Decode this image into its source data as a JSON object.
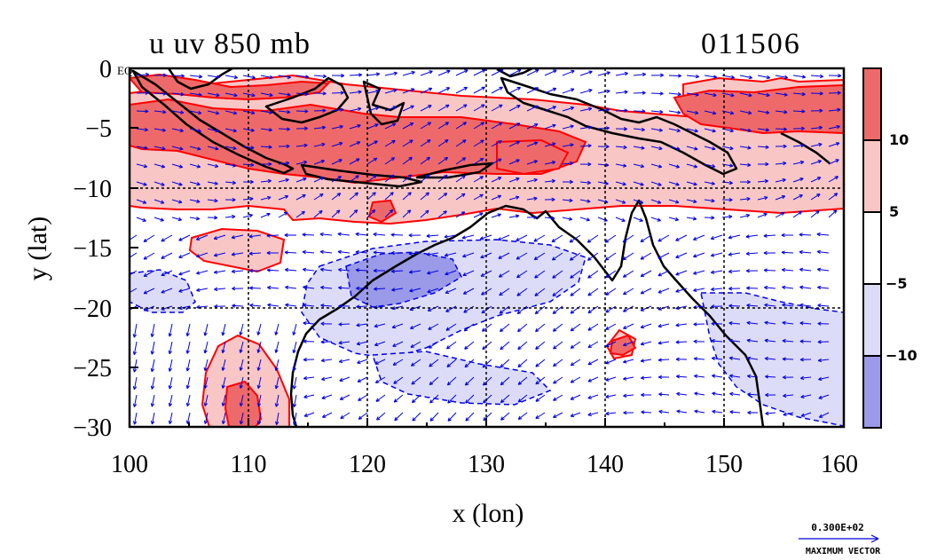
{
  "plot": {
    "title": "u uv 850 mb",
    "timestamp": "011506",
    "xlabel": "x (lon)",
    "ylabel": "y (lat)",
    "x_ticks": [
      "100",
      "110",
      "120",
      "130",
      "140",
      "150",
      "160"
    ],
    "y_ticks": [
      "0",
      "−5",
      "−10",
      "−15",
      "−20",
      "−25",
      "−30"
    ],
    "eq_label": "EQ",
    "xlim": [
      100,
      160
    ],
    "ylim": [
      -30,
      0
    ],
    "grid": true
  },
  "colorbar": {
    "labels": [
      "10",
      "5",
      "−5",
      "−10"
    ],
    "bands": [
      {
        "range": "> 10",
        "color": "#ee6a6a"
      },
      {
        "range": "5 to 10",
        "color": "#f9c6c6"
      },
      {
        "range": "-5 to 5",
        "color": "#ffffff"
      },
      {
        "range": "-10 to -5",
        "color": "#dcdcf8"
      },
      {
        "range": "< -10",
        "color": "#9a9ae8"
      }
    ]
  },
  "vector_key": {
    "value": "0.300E+02",
    "label": "MAXIMUM VECTOR"
  },
  "colors": {
    "strong_positive": "#ee6a6a",
    "positive": "#f9c6c6",
    "negative": "#dcdcf8",
    "strong_negative": "#9a9ae8",
    "positive_contour": "#ff0000",
    "negative_contour": "#0000ee",
    "vectors": "#0000dd",
    "coastline": "#000000"
  }
}
